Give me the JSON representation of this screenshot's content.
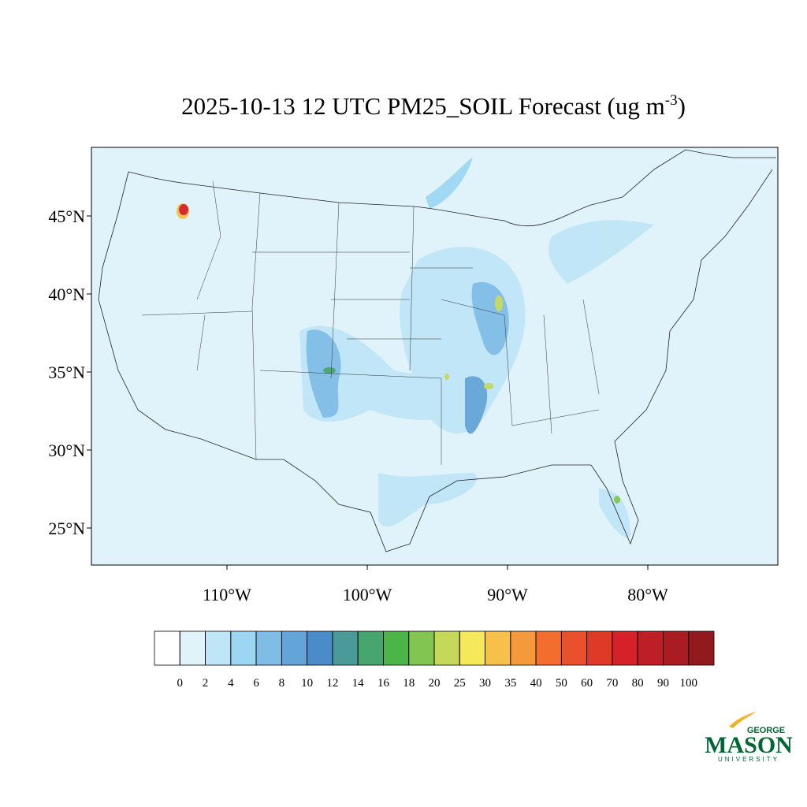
{
  "title": {
    "main": "2025-10-13 12 UTC PM25_SOIL Forecast (ug m",
    "sup": "-3",
    "end": ")"
  },
  "lat_ticks": [
    {
      "value": 45,
      "label": "45°N"
    },
    {
      "value": 40,
      "label": "40°N"
    },
    {
      "value": 35,
      "label": "35°N"
    },
    {
      "value": 30,
      "label": "30°N"
    },
    {
      "value": 25,
      "label": "25°N"
    }
  ],
  "lon_ticks": [
    {
      "value": -110,
      "label": "110°W"
    },
    {
      "value": -100,
      "label": "100°W"
    },
    {
      "value": -90,
      "label": "90°W"
    },
    {
      "value": -80,
      "label": "80°W"
    }
  ],
  "colorbar": {
    "levels": [
      0,
      2,
      4,
      6,
      8,
      10,
      12,
      14,
      16,
      18,
      20,
      25,
      30,
      35,
      40,
      50,
      60,
      70,
      80,
      90,
      100
    ],
    "colors": [
      "#ffffff",
      "#e0f3fb",
      "#bfe6f7",
      "#9dd6f3",
      "#80bde6",
      "#64a5d9",
      "#4a8bc9",
      "#4a9a9a",
      "#47a56e",
      "#4bb548",
      "#82c550",
      "#c5d85a",
      "#f6e85b",
      "#f7c04a",
      "#f59a3c",
      "#f26d2e",
      "#e9502c",
      "#de3a27",
      "#d52129",
      "#be1e25",
      "#a91c22",
      "#901a1c"
    ]
  },
  "logo": {
    "top": "GEORGE",
    "main": "MASON",
    "bottom": "UNIVERSITY"
  }
}
